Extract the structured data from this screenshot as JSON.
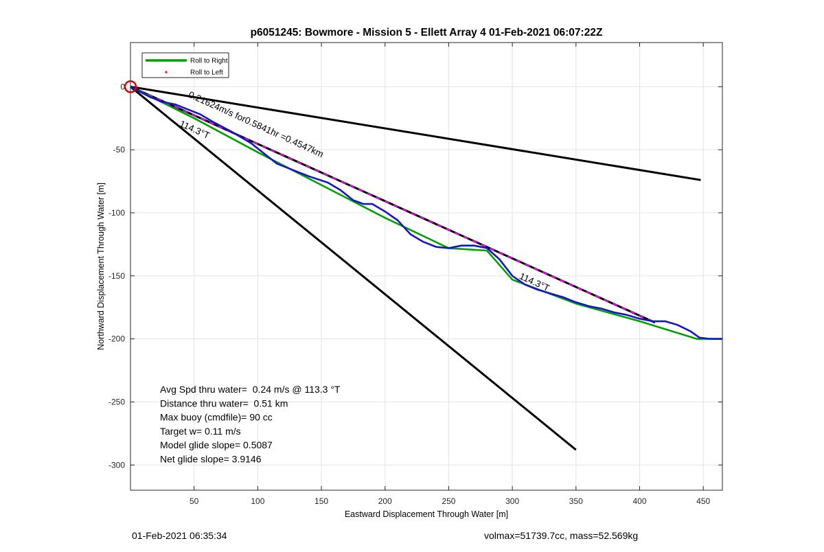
{
  "chart_data": {
    "type": "line",
    "title": "p6051245: Bowmore - Mission 5 - Ellett Array 4 01-Feb-2021 06:07:22Z",
    "xlabel": "Eastward Displacement Through Water [m]",
    "ylabel": "Northward Displacement Through Water [m]",
    "xlim": [
      0,
      465
    ],
    "ylim": [
      -320,
      35
    ],
    "xticks": [
      50,
      100,
      150,
      200,
      250,
      300,
      350,
      400,
      450
    ],
    "yticks": [
      0,
      -50,
      -100,
      -150,
      -200,
      -250,
      -300
    ],
    "grid": true,
    "legend_position": "top-left",
    "legend": [
      {
        "label": "Roll to Right",
        "color": "#00a000",
        "style": "line"
      },
      {
        "label": "Roll to Left",
        "color": "#ff0000",
        "style": "dot"
      }
    ],
    "series": [
      {
        "name": "Roll to Right",
        "color": "#00a000",
        "x": [
          0,
          50,
          100,
          150,
          200,
          250,
          280,
          300,
          350,
          400,
          445,
          465
        ],
        "y": [
          0,
          -25,
          -52,
          -78,
          -104,
          -128,
          -130,
          -153,
          -172,
          -186,
          -200,
          -200
        ]
      },
      {
        "color": "#1515c8",
        "x": [
          0,
          15,
          25,
          35,
          45,
          55,
          65,
          80,
          95,
          105,
          115,
          125,
          140,
          155,
          165,
          175,
          183,
          190,
          200,
          210,
          220,
          230,
          240,
          250,
          260,
          270,
          280,
          290,
          300,
          310,
          320,
          330,
          340,
          350,
          360,
          370,
          380,
          390,
          400,
          410,
          420,
          430,
          440,
          447,
          455,
          465
        ],
        "y": [
          0,
          -8,
          -12,
          -14,
          -18,
          -22,
          -28,
          -36,
          -45,
          -53,
          -61,
          -65,
          -71,
          -76,
          -82,
          -90,
          -93,
          -93,
          -99,
          -106,
          -117,
          -123,
          -127,
          -128,
          -126,
          -126,
          -128,
          -137,
          -150,
          -157,
          -161,
          -164,
          -167,
          -171,
          -174,
          -176,
          -179,
          -181,
          -184,
          -186,
          -186,
          -189,
          -194,
          -199,
          -200,
          -200
        ]
      }
    ],
    "lines": [
      {
        "color": "#000000",
        "x": [
          0,
          448
        ],
        "y": [
          0,
          -74
        ]
      },
      {
        "color": "#000000",
        "x": [
          0,
          350
        ],
        "y": [
          0,
          -288
        ]
      },
      {
        "color": "#000000",
        "dash_color": "#ff00ff",
        "x": [
          0,
          412
        ],
        "y": [
          0,
          -187
        ]
      }
    ],
    "start_marker": {
      "x": 0,
      "y": 0,
      "color": "#e00000"
    },
    "annotations": [
      {
        "id": "current",
        "text": "0.21624m/s for0.5841hr =0.4547km",
        "x": 45,
        "y": -8,
        "angle": 24.4
      },
      {
        "id": "heading-start",
        "text": "114.3°T",
        "x": 38,
        "y": -31,
        "angle": 24.4
      },
      {
        "id": "heading-end",
        "text": "114.3°T",
        "x": 305,
        "y": -152,
        "angle": 24.4
      }
    ],
    "stats": [
      "Avg Spd thru water=  0.24 m/s @ 113.3 °T",
      "Distance thru water=  0.51 km",
      "Max buoy (cmdfile)= 90 cc",
      "Target w= 0.11 m/s",
      "Model glide slope= 0.5087",
      "Net glide slope= 3.9146"
    ]
  },
  "footer": {
    "timestamp": "01-Feb-2021 06:35:34",
    "summary": "volmax=51739.7cc, mass=52.569kg"
  }
}
